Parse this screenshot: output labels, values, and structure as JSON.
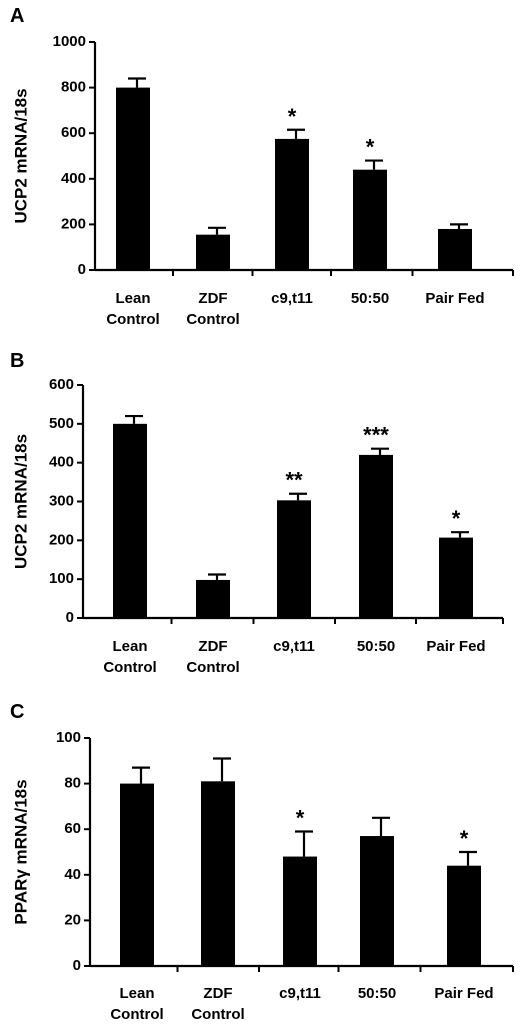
{
  "chart_data": [
    {
      "type": "bar",
      "panel": "A",
      "ylabel": "UCP2 mRNA/18s",
      "ylim": [
        0,
        1000
      ],
      "yticks": [
        "0",
        "200",
        "400",
        "600",
        "800",
        "1000"
      ],
      "categories": [
        [
          "Lean",
          "Control"
        ],
        [
          "ZDF",
          "Control"
        ],
        [
          "c9,t11"
        ],
        [
          "50:50"
        ],
        [
          "Pair Fed"
        ]
      ],
      "values": [
        800,
        155,
        575,
        440,
        180
      ],
      "errors": [
        40,
        30,
        40,
        40,
        20
      ],
      "significance": [
        "",
        "",
        "*",
        "*",
        ""
      ]
    },
    {
      "type": "bar",
      "panel": "B",
      "ylabel": "UCP2 mRNA/18s",
      "ylim": [
        0,
        600
      ],
      "yticks": [
        "0",
        "100",
        "200",
        "300",
        "400",
        "500",
        "600"
      ],
      "categories": [
        [
          "Lean",
          "Control"
        ],
        [
          "ZDF",
          "Control"
        ],
        [
          "c9,t11"
        ],
        [
          "50:50"
        ],
        [
          "Pair Fed"
        ]
      ],
      "values": [
        500,
        98,
        303,
        420,
        207
      ],
      "errors": [
        20,
        14,
        17,
        16,
        14
      ],
      "significance": [
        "",
        "",
        "**",
        "***",
        "*"
      ]
    },
    {
      "type": "bar",
      "panel": "C",
      "ylabel": "PPARγ mRNA/18s",
      "ylim": [
        0,
        100
      ],
      "yticks": [
        "0",
        "20",
        "40",
        "60",
        "80",
        "100"
      ],
      "categories": [
        [
          "Lean",
          "Control"
        ],
        [
          "ZDF",
          "Control"
        ],
        [
          "c9,t11"
        ],
        [
          "50:50"
        ],
        [
          "Pair Fed"
        ]
      ],
      "values": [
        80,
        81,
        48,
        57,
        44
      ],
      "errors": [
        7,
        10,
        11,
        8,
        6
      ],
      "significance": [
        "",
        "",
        "*",
        "",
        "*"
      ]
    }
  ]
}
